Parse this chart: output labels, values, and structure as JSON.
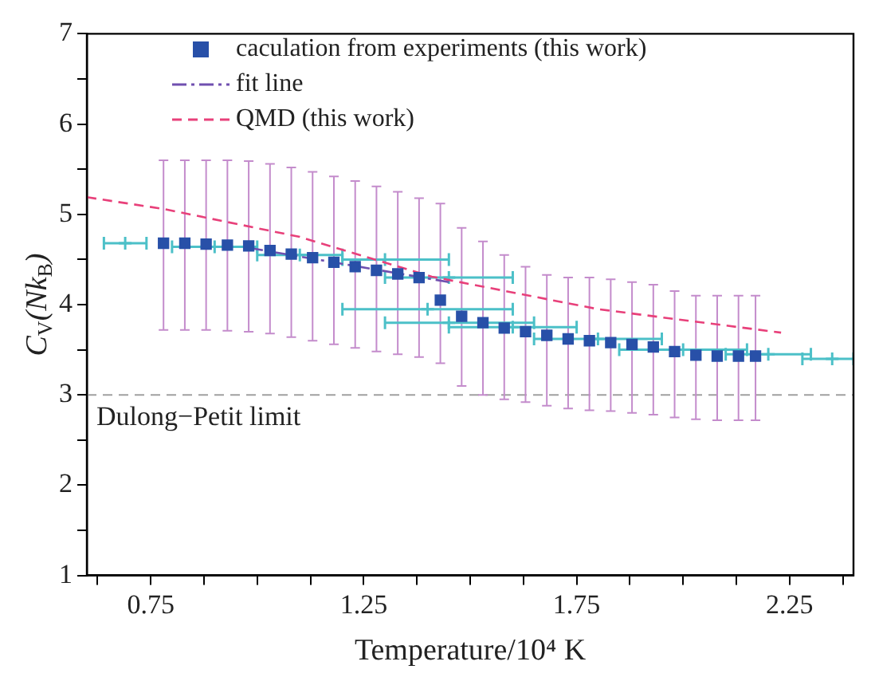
{
  "chart_data": {
    "type": "scatter",
    "xlabel": "Temperature/10⁴ K",
    "ylabel": "C$_{V}$(Nk$_{B}$)",
    "xlim": [
      0.6,
      2.4
    ],
    "xticks": [
      {
        "value": 0.625,
        "label": null
      },
      0.75,
      {
        "value": 0.875,
        "label": null
      },
      {
        "value": 1.0,
        "label": null
      },
      {
        "value": 1.125,
        "label": null
      },
      1.25,
      {
        "value": 1.375,
        "label": null
      },
      {
        "value": 1.5,
        "label": null
      },
      {
        "value": 1.625,
        "label": null
      },
      1.75,
      {
        "value": 1.875,
        "label": null
      },
      {
        "value": 2.0,
        "label": null
      },
      {
        "value": 2.125,
        "label": null
      },
      2.25,
      {
        "value": 2.375,
        "label": null
      }
    ],
    "ylim": [
      1,
      7
    ],
    "yticks": [
      1,
      {
        "value": 1.5,
        "label": null
      },
      2,
      {
        "value": 2.5,
        "label": null
      },
      3,
      {
        "value": 3.5,
        "label": null
      },
      4,
      {
        "value": 4.5,
        "label": null
      },
      5,
      {
        "value": 5.5,
        "label": null
      },
      6,
      {
        "value": 6.5,
        "label": null
      },
      7
    ],
    "grid": false,
    "legend": "top left",
    "ref_lines": [
      {
        "axis": "y",
        "value": 3,
        "label": "Dulong−Petit limit",
        "color": "#a0a0a0",
        "line_style": "dashed"
      }
    ],
    "series": [
      {
        "name": "caculation from experiments (this work)",
        "color": "#2850a8",
        "marker": "square",
        "x": [
          0.78,
          0.83,
          0.88,
          0.93,
          0.98,
          1.03,
          1.08,
          1.13,
          1.18,
          1.23,
          1.28,
          1.33,
          1.38,
          1.43,
          1.48,
          1.53,
          1.58,
          1.63,
          1.68,
          1.73,
          1.78,
          1.83,
          1.88,
          1.93,
          1.98,
          2.03,
          2.08,
          2.13,
          2.17
        ],
        "values": [
          4.68,
          4.68,
          4.67,
          4.66,
          4.65,
          4.6,
          4.56,
          4.52,
          4.47,
          4.42,
          4.38,
          4.34,
          4.3,
          4.05,
          3.87,
          3.8,
          3.74,
          3.7,
          3.66,
          3.62,
          3.6,
          3.58,
          3.56,
          3.53,
          3.48,
          3.44,
          3.43,
          3.43,
          3.43
        ],
        "errors": [
          [
            3.72,
            5.6
          ],
          [
            3.72,
            5.6
          ],
          [
            3.72,
            5.6
          ],
          [
            3.71,
            5.6
          ],
          [
            3.7,
            5.59
          ],
          [
            3.68,
            5.56
          ],
          [
            3.64,
            5.52
          ],
          [
            3.6,
            5.47
          ],
          [
            3.56,
            5.42
          ],
          [
            3.52,
            5.37
          ],
          [
            3.48,
            5.31
          ],
          [
            3.45,
            5.25
          ],
          [
            3.42,
            5.18
          ],
          [
            3.35,
            5.12
          ],
          [
            3.1,
            4.85
          ],
          [
            3.0,
            4.7
          ],
          [
            2.95,
            4.55
          ],
          [
            2.92,
            4.42
          ],
          [
            2.88,
            4.33
          ],
          [
            2.85,
            4.3
          ],
          [
            2.83,
            4.3
          ],
          [
            2.82,
            4.28
          ],
          [
            2.8,
            4.25
          ],
          [
            2.78,
            4.22
          ],
          [
            2.75,
            4.15
          ],
          [
            2.73,
            4.1
          ],
          [
            2.72,
            4.1
          ],
          [
            2.72,
            4.1
          ],
          [
            2.72,
            4.1
          ]
        ]
      },
      {
        "name": "fit line",
        "type": "line",
        "color": "#7050b0",
        "marker": "none",
        "line_style": "dashdot",
        "x": [
          0.98,
          1.45
        ],
        "values": [
          4.63,
          4.25
        ]
      },
      {
        "name": "QMD (this work)",
        "type": "line",
        "color": "#e8407a",
        "marker": "none",
        "line_style": "dashed",
        "x": [
          0.6,
          0.78,
          1.1,
          1.41,
          1.8,
          2.23
        ],
        "values": [
          5.19,
          5.06,
          4.75,
          4.31,
          3.95,
          3.69
        ]
      },
      {
        "color": "#4cc0c8",
        "marker": "cross",
        "x": [
          0.69,
          0.9,
          1.1,
          1.3,
          1.45,
          1.4,
          1.45,
          1.6,
          1.8,
          2.0,
          2.2,
          2.35
        ],
        "values": [
          4.68,
          4.64,
          4.55,
          4.5,
          4.3,
          3.95,
          3.8,
          3.75,
          3.62,
          3.5,
          3.45,
          3.4
        ],
        "xerrors": [
          [
            0.64,
            0.74
          ],
          [
            0.8,
            1.0
          ],
          [
            1.0,
            1.2
          ],
          [
            1.2,
            1.45
          ],
          [
            1.3,
            1.6
          ],
          [
            1.2,
            1.6
          ],
          [
            1.3,
            1.65
          ],
          [
            1.45,
            1.75
          ],
          [
            1.65,
            1.95
          ],
          [
            1.85,
            2.15
          ],
          [
            2.1,
            2.3
          ],
          [
            2.28,
            2.4
          ]
        ]
      }
    ]
  }
}
